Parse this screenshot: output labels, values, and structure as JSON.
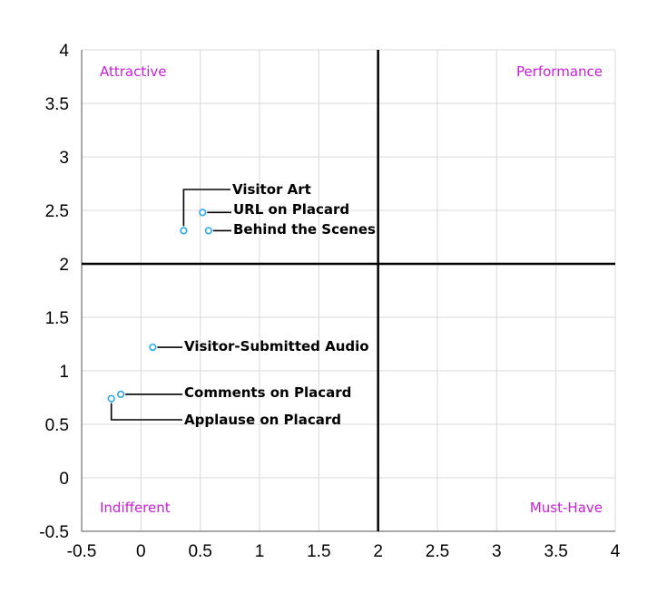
{
  "chart_data": {
    "type": "scatter",
    "xlim": [
      -0.5,
      4
    ],
    "ylim": [
      -0.5,
      4
    ],
    "x_ticks": [
      "-0.5",
      "0",
      "0.5",
      "1",
      "1.5",
      "2",
      "2.5",
      "3",
      "3.5",
      "4"
    ],
    "y_ticks": [
      "-0.5",
      "0",
      "0.5",
      "1",
      "1.5",
      "2",
      "2.5",
      "3",
      "3.5",
      "4"
    ],
    "x_tick_values": [
      -0.5,
      0,
      0.5,
      1,
      1.5,
      2,
      2.5,
      3,
      3.5,
      4
    ],
    "y_tick_values": [
      -0.5,
      0,
      0.5,
      1,
      1.5,
      2,
      2.5,
      3,
      3.5,
      4
    ],
    "grid": true,
    "divider": {
      "x": 2,
      "y": 2
    },
    "quadrants": {
      "top_left": "Attractive",
      "top_right": "Performance",
      "bottom_left": "Indifferent",
      "bottom_right": "Must-Have"
    },
    "points": [
      {
        "label": "Visitor Art",
        "x": 0.36,
        "y": 2.31
      },
      {
        "label": "URL on Placard",
        "x": 0.52,
        "y": 2.48
      },
      {
        "label": "Behind the Scenes",
        "x": 0.57,
        "y": 2.31
      },
      {
        "label": "Visitor-Submitted Audio",
        "x": 0.1,
        "y": 1.22
      },
      {
        "label": "Comments on Placard",
        "x": -0.17,
        "y": 0.78
      },
      {
        "label": "Applause on Placard",
        "x": -0.25,
        "y": 0.74
      }
    ],
    "colors": {
      "point_stroke": "#29a9ec",
      "quadrant_label": "#c61fd6",
      "grid": "#d9d9d9",
      "axis": "#000000"
    }
  }
}
